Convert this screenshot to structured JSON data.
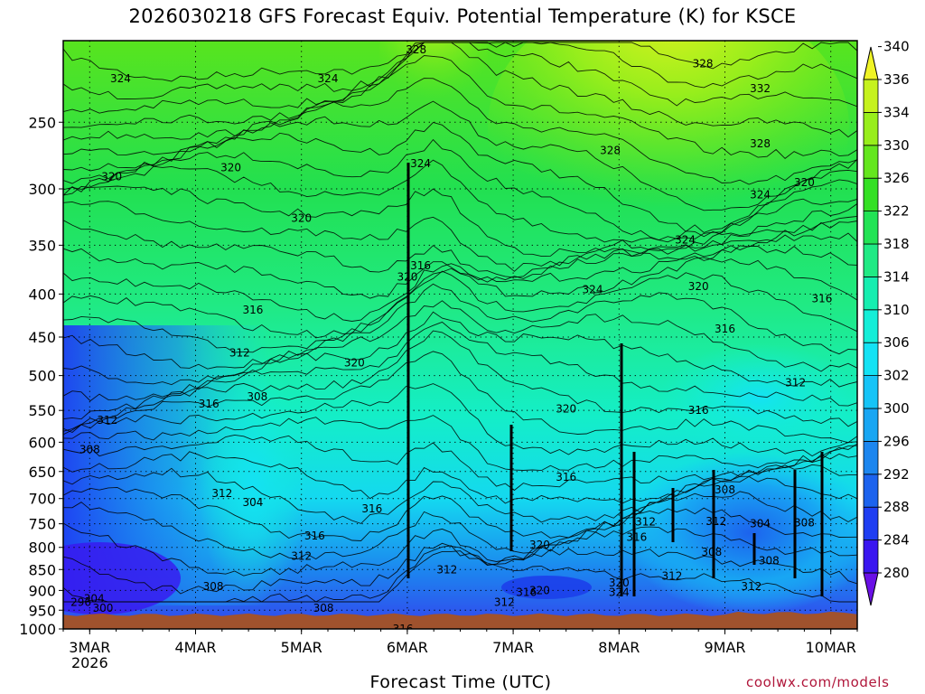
{
  "chart_data": {
    "type": "heatmap",
    "title": "2026030218 GFS Forecast Equiv. Potential Temperature (K) for KSCE",
    "xlabel": "Forecast Time (UTC)",
    "ylabel": "",
    "x_ticks": [
      "3MAR",
      "4MAR",
      "5MAR",
      "6MAR",
      "7MAR",
      "8MAR",
      "9MAR",
      "10MAR"
    ],
    "x_year_label": "2026",
    "x_range": [
      "2026-03-02 18Z",
      "2026-03-10 06Z"
    ],
    "y_ticks": [
      250,
      300,
      350,
      400,
      450,
      500,
      550,
      600,
      650,
      700,
      750,
      800,
      850,
      900,
      950,
      1000
    ],
    "y_range": [
      200,
      1000
    ],
    "y_scale": "log-pressure (hPa), inverted",
    "grid": "dotted",
    "colorbar_levels": [
      280,
      284,
      288,
      292,
      296,
      300,
      302,
      306,
      310,
      314,
      318,
      322,
      326,
      330,
      334,
      336,
      340
    ],
    "colorbar_colors": [
      "#6a10e6",
      "#3a16f0",
      "#1f3ef2",
      "#1c63ee",
      "#1c86ef",
      "#18a6f3",
      "#16c4f7",
      "#14e2f4",
      "#14eed8",
      "#16eeb0",
      "#20ea84",
      "#22e355",
      "#34e024",
      "#64e61e",
      "#98ee1c",
      "#c6f21e",
      "#f0f426"
    ],
    "underground_color": "#a0522d",
    "contour_labels": [
      {
        "t": "2026-03-02T22",
        "p": 930,
        "v": "296"
      },
      {
        "t": "2026-03-03T01",
        "p": 920,
        "v": "304"
      },
      {
        "t": "2026-03-03T03",
        "p": 945,
        "v": "300"
      },
      {
        "t": "2026-03-03T00",
        "p": 612,
        "v": "308"
      },
      {
        "t": "2026-03-03T04",
        "p": 565,
        "v": "312"
      },
      {
        "t": "2026-03-03T05",
        "p": 290,
        "v": "320"
      },
      {
        "t": "2026-03-03T07",
        "p": 222,
        "v": "324"
      },
      {
        "t": "2026-03-04T03",
        "p": 540,
        "v": "316"
      },
      {
        "t": "2026-03-04T04",
        "p": 890,
        "v": "308"
      },
      {
        "t": "2026-03-04T06",
        "p": 690,
        "v": "312"
      },
      {
        "t": "2026-03-04T10",
        "p": 470,
        "v": "312"
      },
      {
        "t": "2026-03-04T08",
        "p": 283,
        "v": "320"
      },
      {
        "t": "2026-03-04T13",
        "p": 707,
        "v": "304"
      },
      {
        "t": "2026-03-04T14",
        "p": 530,
        "v": "308"
      },
      {
        "t": "2026-03-04T13",
        "p": 418,
        "v": "316"
      },
      {
        "t": "2026-03-05T06",
        "p": 222,
        "v": "324"
      },
      {
        "t": "2026-03-05T00",
        "p": 325,
        "v": "320"
      },
      {
        "t": "2026-03-05T00",
        "p": 820,
        "v": "312"
      },
      {
        "t": "2026-03-05T03",
        "p": 775,
        "v": "316"
      },
      {
        "t": "2026-03-05T05",
        "p": 945,
        "v": "308"
      },
      {
        "t": "2026-03-05T12",
        "p": 483,
        "v": "320"
      },
      {
        "t": "2026-03-05T16",
        "p": 720,
        "v": "316"
      },
      {
        "t": "2026-03-05T23",
        "p": 1000,
        "v": "316"
      },
      {
        "t": "2026-03-06T02",
        "p": 205,
        "v": "328"
      },
      {
        "t": "2026-03-06T03",
        "p": 280,
        "v": "324"
      },
      {
        "t": "2026-03-06T03",
        "p": 370,
        "v": "316"
      },
      {
        "t": "2026-03-06T00",
        "p": 382,
        "v": "320"
      },
      {
        "t": "2026-03-06T09",
        "p": 850,
        "v": "312"
      },
      {
        "t": "2026-03-06T22",
        "p": 930,
        "v": "312"
      },
      {
        "t": "2026-03-07T03",
        "p": 905,
        "v": "316"
      },
      {
        "t": "2026-03-07T06",
        "p": 900,
        "v": "320"
      },
      {
        "t": "2026-03-07T06",
        "p": 795,
        "v": "320"
      },
      {
        "t": "2026-03-07T12",
        "p": 548,
        "v": "320"
      },
      {
        "t": "2026-03-07T12",
        "p": 660,
        "v": "316"
      },
      {
        "t": "2026-03-07T18",
        "p": 395,
        "v": "324"
      },
      {
        "t": "2026-03-07T22",
        "p": 270,
        "v": "328"
      },
      {
        "t": "2026-03-08T00",
        "p": 905,
        "v": "324"
      },
      {
        "t": "2026-03-08T00",
        "p": 882,
        "v": "320"
      },
      {
        "t": "2026-03-08T04",
        "p": 778,
        "v": "316"
      },
      {
        "t": "2026-03-08T06",
        "p": 746,
        "v": "312"
      },
      {
        "t": "2026-03-08T12",
        "p": 865,
        "v": "312"
      },
      {
        "t": "2026-03-08T15",
        "p": 345,
        "v": "324"
      },
      {
        "t": "2026-03-08T18",
        "p": 392,
        "v": "320"
      },
      {
        "t": "2026-03-08T19",
        "p": 213,
        "v": "328"
      },
      {
        "t": "2026-03-08T18",
        "p": 550,
        "v": "316"
      },
      {
        "t": "2026-03-08T21",
        "p": 810,
        "v": "308"
      },
      {
        "t": "2026-03-08T22",
        "p": 745,
        "v": "312"
      },
      {
        "t": "2026-03-09T00",
        "p": 683,
        "v": "308"
      },
      {
        "t": "2026-03-09T00",
        "p": 440,
        "v": "316"
      },
      {
        "t": "2026-03-09T06",
        "p": 890,
        "v": "312"
      },
      {
        "t": "2026-03-09T08",
        "p": 750,
        "v": "304"
      },
      {
        "t": "2026-03-09T10",
        "p": 830,
        "v": "308"
      },
      {
        "t": "2026-03-09T08",
        "p": 228,
        "v": "332"
      },
      {
        "t": "2026-03-09T08",
        "p": 265,
        "v": "328"
      },
      {
        "t": "2026-03-09T08",
        "p": 305,
        "v": "324"
      },
      {
        "t": "2026-03-09T18",
        "p": 295,
        "v": "320"
      },
      {
        "t": "2026-03-09T16",
        "p": 510,
        "v": "312"
      },
      {
        "t": "2026-03-09T22",
        "p": 405,
        "v": "316"
      },
      {
        "t": "2026-03-09T18",
        "p": 748,
        "v": "308"
      }
    ]
  },
  "credit": "coolwx.com/models"
}
